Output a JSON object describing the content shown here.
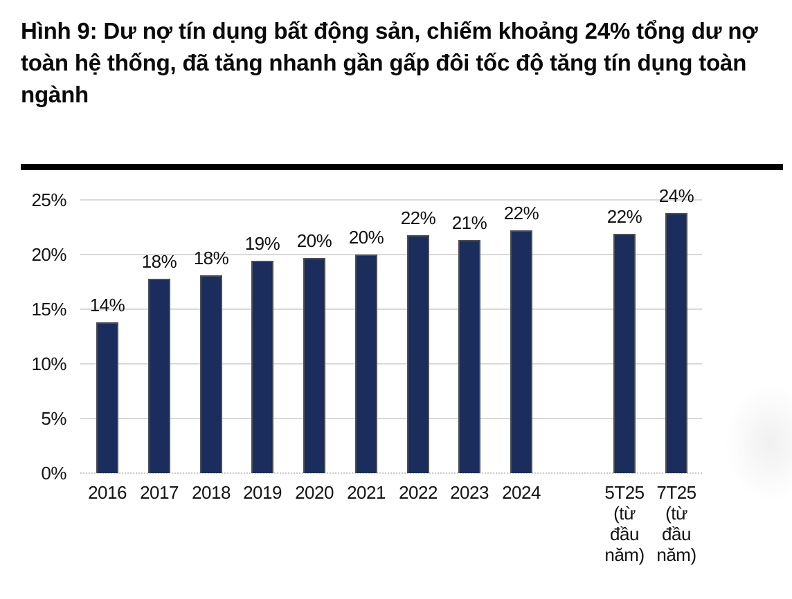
{
  "figure": {
    "title": "Hình 9: Dư nợ tín dụng bất động sản, chiếm khoảng 24% tổng dư nợ toàn hệ thống, đã tăng nhanh gần gấp đôi tốc độ tăng tín dụng toàn ngành"
  },
  "chart_data": {
    "type": "bar",
    "title": "Hình 9: Dư nợ tín dụng bất động sản, chiếm khoảng 24% tổng dư nợ toàn hệ thống, đã tăng nhanh gần gấp đôi tốc độ tăng tín dụng toàn ngành",
    "xlabel": "",
    "ylabel": "",
    "categories": [
      "2016",
      "2017",
      "2018",
      "2019",
      "2020",
      "2021",
      "2022",
      "2023",
      "2024",
      "5T25 (từ đầu năm)",
      "7T25 (từ đầu năm)"
    ],
    "x_tick_lines": [
      [
        "2016"
      ],
      [
        "2017"
      ],
      [
        "2018"
      ],
      [
        "2019"
      ],
      [
        "2020"
      ],
      [
        "2021"
      ],
      [
        "2022"
      ],
      [
        "2023"
      ],
      [
        "2024"
      ],
      [
        "5T25",
        "(từ",
        "đầu",
        "năm)"
      ],
      [
        "7T25",
        "(từ",
        "đầu",
        "năm)"
      ]
    ],
    "values": [
      14,
      18,
      18,
      19,
      20,
      20,
      22,
      21,
      22,
      22,
      24
    ],
    "data_labels": [
      "14%",
      "18%",
      "18%",
      "19%",
      "20%",
      "20%",
      "22%",
      "21%",
      "22%",
      "22%",
      "24%"
    ],
    "values_precise": [
      13.8,
      17.8,
      18.1,
      19.4,
      19.7,
      20.0,
      21.8,
      21.3,
      22.2,
      21.9,
      23.8
    ],
    "gap_before_index": 9,
    "ylim": [
      0,
      25
    ],
    "y_ticks": [
      "0%",
      "5%",
      "10%",
      "15%",
      "20%",
      "25%"
    ],
    "y_tick_values": [
      0,
      5,
      10,
      15,
      20,
      25
    ],
    "grid": true,
    "legend": "none",
    "bar_color": "#1B2D5C",
    "bar_border_color": "#4B4F55",
    "gridline_color": "#D9D9D9",
    "baseline_color": "#C9C9C9",
    "axis_text_color": "#141414"
  }
}
